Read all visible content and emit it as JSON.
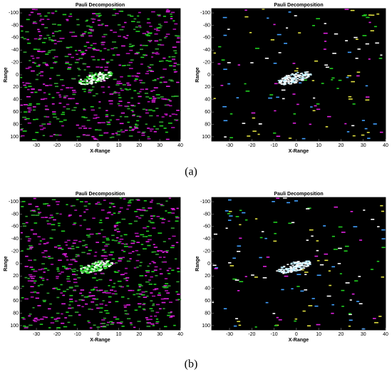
{
  "chart_data": [
    {
      "type": "image",
      "title": "Pauli Decomposition",
      "xlabel": "X-Range",
      "ylabel": "Range",
      "xlim": [
        -38,
        40
      ],
      "xticks": [
        -30,
        -20,
        -10,
        0,
        10,
        20,
        30,
        40
      ],
      "ylim": [
        -107,
        107
      ],
      "yticks": [
        -100,
        -80,
        -60,
        -40,
        -20,
        0,
        20,
        40,
        60,
        80,
        100
      ],
      "y_inverted": true
    },
    {
      "type": "image",
      "title": "Pauli Decomposition",
      "xlabel": "X-Range",
      "ylabel": "Range",
      "xlim": [
        -38,
        40
      ],
      "xticks": [
        -30,
        -20,
        -10,
        0,
        10,
        20,
        30,
        40
      ],
      "ylim": [
        -107,
        107
      ],
      "yticks": [
        -100,
        -80,
        -60,
        -40,
        -20,
        0,
        20,
        40,
        60,
        80,
        100
      ],
      "y_inverted": true
    },
    {
      "type": "image",
      "title": "Pauli Decomposition",
      "xlabel": "X-Range",
      "ylabel": "Range",
      "xlim": [
        -38,
        40
      ],
      "xticks": [
        -30,
        -20,
        -10,
        0,
        10,
        20,
        30,
        40
      ],
      "ylim": [
        -107,
        107
      ],
      "yticks": [
        -100,
        -80,
        -60,
        -40,
        -20,
        0,
        20,
        40,
        60,
        80,
        100
      ],
      "y_inverted": true
    },
    {
      "type": "image",
      "title": "Pauli Decomposition",
      "xlabel": "X-Range",
      "ylabel": "Range",
      "xlim": [
        -38,
        40
      ],
      "xticks": [
        -30,
        -20,
        -10,
        0,
        10,
        20,
        30,
        40
      ],
      "ylim": [
        -107,
        107
      ],
      "yticks": [
        -100,
        -80,
        -60,
        -40,
        -20,
        0,
        20,
        40,
        60,
        80,
        100
      ],
      "y_inverted": true
    }
  ],
  "captions": [
    "(a)",
    "(b)"
  ]
}
